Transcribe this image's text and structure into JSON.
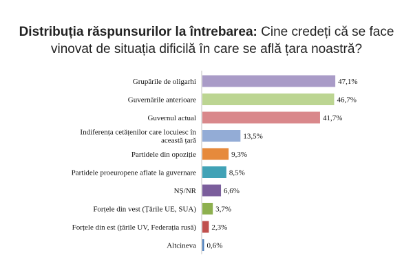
{
  "chart_data": {
    "type": "bar",
    "orientation": "horizontal",
    "title_bold": "Distribuția răspunsurilor la întrebarea:",
    "title_rest": "Cine credeți că se face vinovat de situația dificilă în care se află țara noastră?",
    "categories": [
      [
        "Grupările  de oligarhi"
      ],
      [
        "Guvernările anterioare"
      ],
      [
        "Guvernul actual"
      ],
      [
        "Indiferența cetățenilor care locuiesc în",
        "această țară"
      ],
      [
        "Partidele din  opoziție"
      ],
      [
        "Partidele proeuropene aflate la guvernare"
      ],
      [
        "NȘ/NR"
      ],
      [
        "Forțele din vest (Țările UE, SUA)"
      ],
      [
        "Forțele din est (țările UV, Federația rusă)"
      ],
      [
        "Altcineva"
      ]
    ],
    "values": [
      47.1,
      46.7,
      41.7,
      13.5,
      9.3,
      8.5,
      6.6,
      3.7,
      2.3,
      0.6
    ],
    "value_labels": [
      "47,1%",
      "46,7%",
      "41,7%",
      "13,5%",
      "9,3%",
      "8,5%",
      "6,6%",
      "3,7%",
      "2,3%",
      "0,6%"
    ],
    "colors": [
      "#a99bc7",
      "#bcd592",
      "#d9888b",
      "#93acd6",
      "#e68a3c",
      "#41a2b6",
      "#7b5e9c",
      "#8db04f",
      "#c0504d",
      "#4f81bd"
    ],
    "xlim": [
      0,
      50
    ],
    "grid": false,
    "legend": "none"
  }
}
